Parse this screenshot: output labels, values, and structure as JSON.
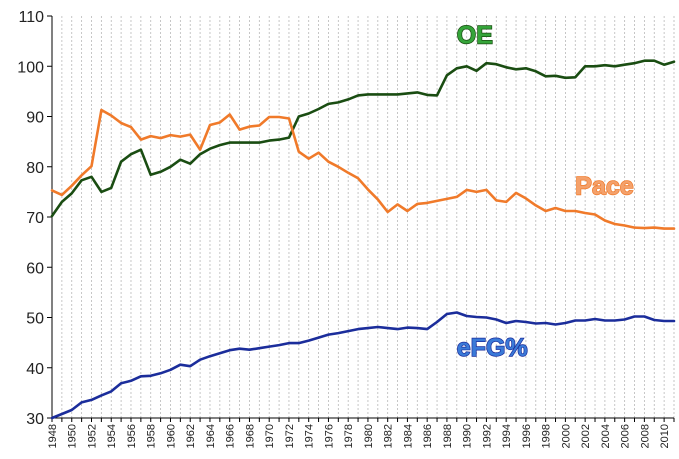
{
  "chart_data": {
    "type": "line",
    "title": "",
    "xlabel": "",
    "ylabel": "",
    "xlim": [
      1948,
      2011
    ],
    "ylim": [
      30,
      110
    ],
    "yticks": [
      30,
      40,
      50,
      60,
      70,
      80,
      90,
      100,
      110
    ],
    "xticks": [
      1948,
      1950,
      1952,
      1954,
      1956,
      1958,
      1960,
      1962,
      1964,
      1966,
      1968,
      1970,
      1972,
      1974,
      1976,
      1978,
      1980,
      1982,
      1984,
      1986,
      1988,
      1990,
      1992,
      1994,
      1996,
      1998,
      2000,
      2002,
      2004,
      2006,
      2008,
      2010
    ],
    "grid": {
      "vertical": "dashed",
      "horizontal": false
    },
    "x": [
      1948,
      1949,
      1950,
      1951,
      1952,
      1953,
      1954,
      1955,
      1956,
      1957,
      1958,
      1959,
      1960,
      1961,
      1962,
      1963,
      1964,
      1965,
      1966,
      1967,
      1968,
      1969,
      1970,
      1971,
      1972,
      1973,
      1974,
      1975,
      1976,
      1977,
      1978,
      1979,
      1980,
      1981,
      1982,
      1983,
      1984,
      1985,
      1986,
      1987,
      1988,
      1989,
      1990,
      1991,
      1992,
      1993,
      1994,
      1995,
      1996,
      1997,
      1998,
      1999,
      2000,
      2001,
      2002,
      2003,
      2004,
      2005,
      2006,
      2007,
      2008,
      2009,
      2010,
      2011
    ],
    "series": [
      {
        "name": "OE",
        "color": "#1a4d12",
        "label_color": "#35a53a",
        "values": [
          70.2,
          73.0,
          74.7,
          77.3,
          78.0,
          75.0,
          75.8,
          81.0,
          82.5,
          83.4,
          78.4,
          79.0,
          80.0,
          81.4,
          80.6,
          82.5,
          83.6,
          84.3,
          84.8,
          84.8,
          84.8,
          84.8,
          85.2,
          85.4,
          85.8,
          90.0,
          90.6,
          91.5,
          92.5,
          92.8,
          93.4,
          94.2,
          94.4,
          94.4,
          94.4,
          94.4,
          94.6,
          94.8,
          94.3,
          94.2,
          98.2,
          99.6,
          100.0,
          99.1,
          100.6,
          100.4,
          99.8,
          99.4,
          99.6,
          99.0,
          98.0,
          98.1,
          97.7,
          97.8,
          100.0,
          100.0,
          100.2,
          100.0,
          100.3,
          100.6,
          101.1,
          101.1,
          100.3,
          100.9
        ]
      },
      {
        "name": "Pace",
        "color": "#f07a2a",
        "label_color": "#f4a16b",
        "values": [
          75.3,
          74.4,
          76.2,
          78.3,
          80.1,
          91.3,
          90.2,
          88.7,
          87.9,
          85.4,
          86.1,
          85.7,
          86.3,
          86.0,
          86.4,
          83.4,
          88.3,
          88.8,
          90.4,
          87.4,
          88.0,
          88.2,
          89.9,
          89.9,
          89.6,
          83.0,
          81.6,
          82.8,
          81.0,
          80.0,
          78.8,
          77.7,
          75.5,
          73.5,
          71.0,
          72.5,
          71.2,
          72.6,
          72.8,
          73.2,
          73.6,
          74.0,
          75.4,
          75.0,
          75.4,
          73.3,
          73.0,
          74.8,
          73.7,
          72.3,
          71.2,
          71.8,
          71.2,
          71.2,
          70.8,
          70.5,
          69.3,
          68.6,
          68.3,
          67.9,
          67.8,
          67.9,
          67.7,
          67.7
        ]
      },
      {
        "name": "eFG%",
        "color": "#1b2d9b",
        "label_color": "#3a7ad8",
        "values": [
          30.0,
          30.8,
          31.6,
          33.1,
          33.6,
          34.5,
          35.3,
          36.9,
          37.4,
          38.3,
          38.4,
          38.9,
          39.6,
          40.6,
          40.3,
          41.6,
          42.3,
          42.9,
          43.5,
          43.8,
          43.6,
          43.9,
          44.2,
          44.5,
          44.9,
          44.9,
          45.4,
          46.0,
          46.6,
          46.9,
          47.3,
          47.7,
          47.9,
          48.1,
          47.9,
          47.7,
          48.0,
          47.9,
          47.7,
          49.1,
          50.7,
          51.0,
          50.3,
          50.1,
          50.0,
          49.6,
          48.9,
          49.3,
          49.1,
          48.8,
          48.9,
          48.6,
          48.9,
          49.4,
          49.4,
          49.7,
          49.4,
          49.4,
          49.6,
          50.2,
          50.2,
          49.5,
          49.3,
          49.3
        ]
      }
    ],
    "annotations": [
      {
        "text": "OE",
        "series": "OE"
      },
      {
        "text": "Pace",
        "series": "Pace"
      },
      {
        "text": "eFG%",
        "series": "eFG%"
      }
    ]
  }
}
